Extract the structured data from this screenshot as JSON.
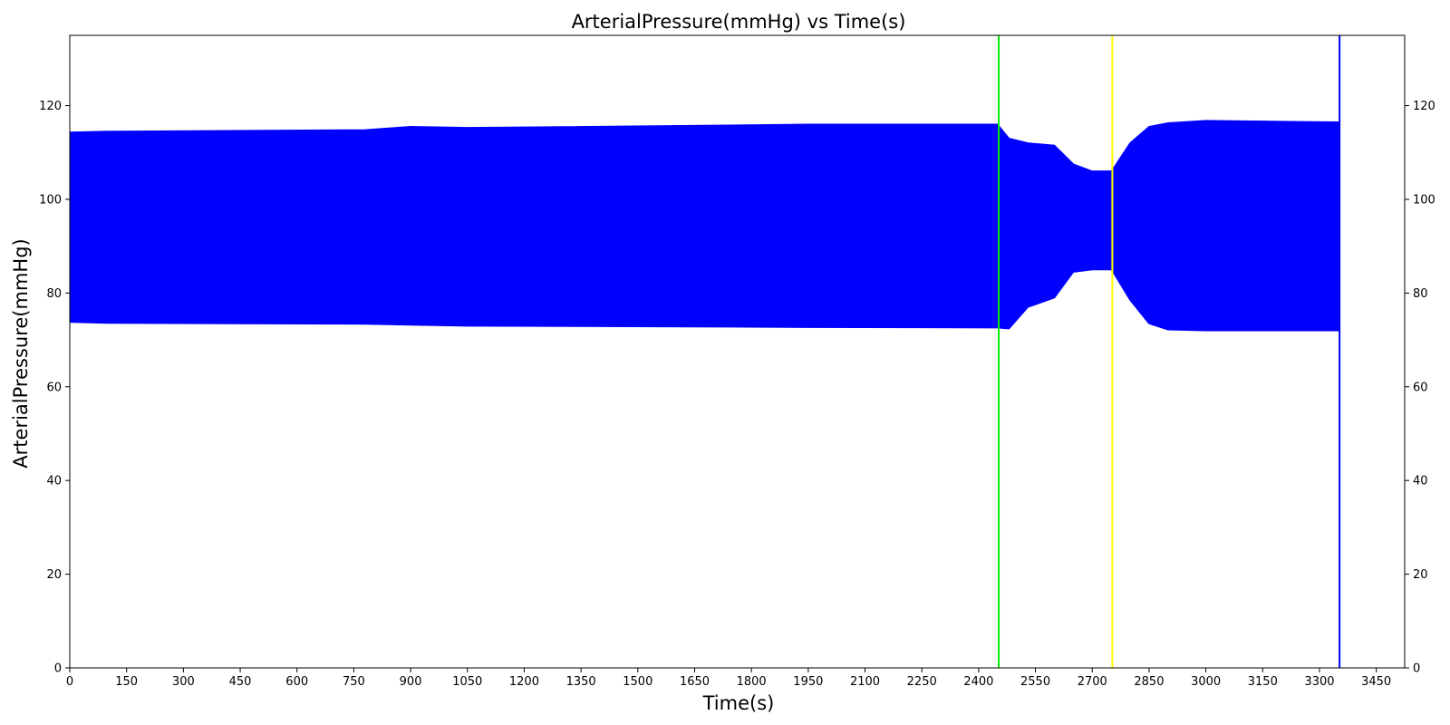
{
  "chart_data": {
    "type": "area",
    "title": "ArterialPressure(mmHg) vs Time(s)",
    "xlabel": "Time(s)",
    "ylabel": "ArterialPressure(mmHg)",
    "xlim": [
      0,
      3525
    ],
    "ylim": [
      0,
      135
    ],
    "x_ticks": [
      0,
      150,
      300,
      450,
      600,
      750,
      900,
      1050,
      1200,
      1350,
      1500,
      1650,
      1800,
      1950,
      2100,
      2250,
      2400,
      2550,
      2700,
      2850,
      3000,
      3150,
      3300,
      3450
    ],
    "y_ticks": [
      0,
      20,
      40,
      60,
      80,
      100,
      120
    ],
    "grid": false,
    "right_axis": true,
    "series": [
      {
        "color": "#0000ff",
        "x": [
          0,
          100,
          780,
          900,
          1050,
          1740,
          1950,
          2450,
          2480,
          2530,
          2600,
          2650,
          2700,
          2750,
          2755,
          2800,
          2850,
          2900,
          3000,
          3100,
          3200,
          3350
        ],
        "upper": [
          114.3,
          114.5,
          114.8,
          115.5,
          115.3,
          115.8,
          116.0,
          116.0,
          113.0,
          112.0,
          111.5,
          107.5,
          106.0,
          106.0,
          106.5,
          112.0,
          115.5,
          116.3,
          116.8,
          116.7,
          116.6,
          116.5
        ],
        "lower": [
          73.8,
          73.6,
          73.4,
          73.2,
          73.0,
          72.8,
          72.7,
          72.6,
          72.4,
          77.0,
          79.0,
          84.5,
          85.0,
          85.0,
          84.5,
          78.5,
          73.5,
          72.2,
          72.0,
          72.0,
          72.0,
          72.0
        ]
      }
    ],
    "vlines": [
      {
        "x": 2453,
        "color": "#00ee00"
      },
      {
        "x": 2753,
        "color": "#ffff00"
      },
      {
        "x": 3353,
        "color": "#0000ff"
      }
    ]
  }
}
